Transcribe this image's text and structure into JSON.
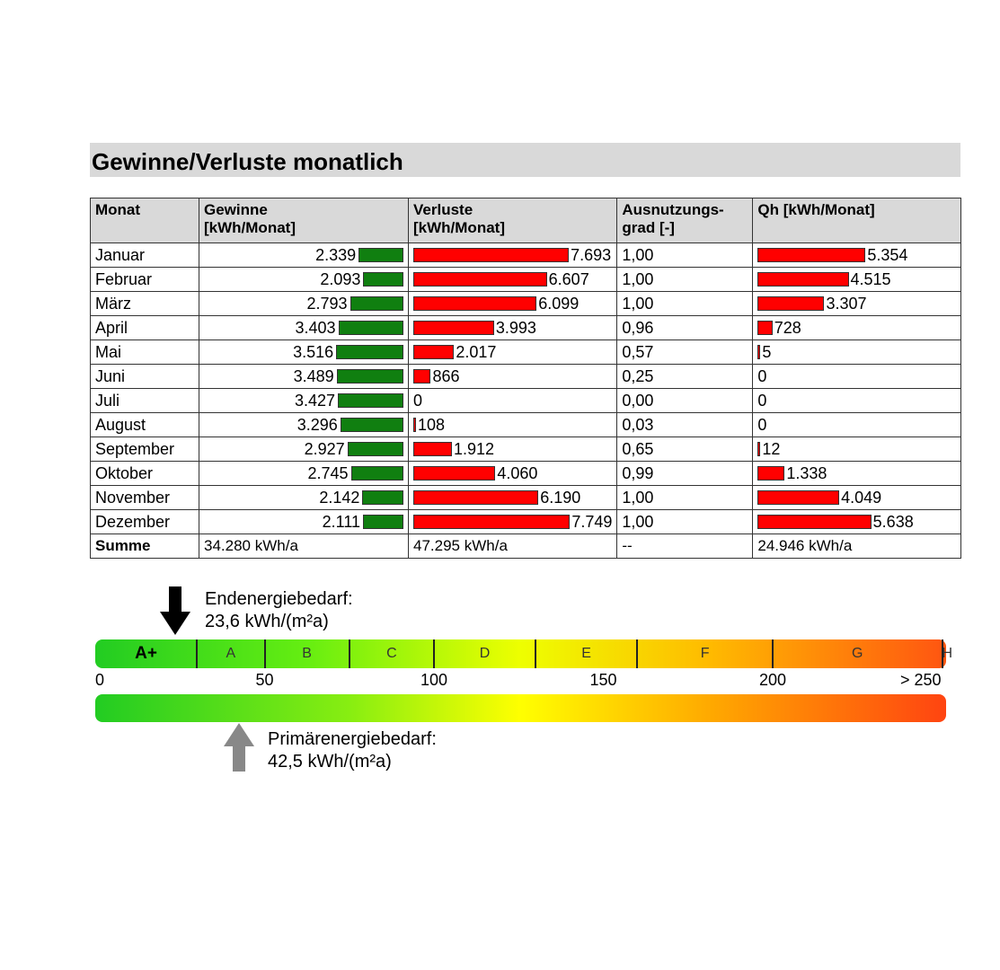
{
  "title": "Gewinne/Verluste monatlich",
  "table": {
    "headers": [
      "Monat",
      "Gewinne\n[kWh/Monat]",
      "Verluste\n[kWh/Monat]",
      "Ausnutzungs-\ngrad [-]",
      "Qh [kWh/Monat]"
    ],
    "rows": [
      {
        "monat": "Januar",
        "gewinne": "2.339",
        "verluste": "7.693",
        "grad": "1,00",
        "qh": "5.354"
      },
      {
        "monat": "Februar",
        "gewinne": "2.093",
        "verluste": "6.607",
        "grad": "1,00",
        "qh": "4.515"
      },
      {
        "monat": "März",
        "gewinne": "2.793",
        "verluste": "6.099",
        "grad": "1,00",
        "qh": "3.307"
      },
      {
        "monat": "April",
        "gewinne": "3.403",
        "verluste": "3.993",
        "grad": "0,96",
        "qh": "728"
      },
      {
        "monat": "Mai",
        "gewinne": "3.516",
        "verluste": "2.017",
        "grad": "0,57",
        "qh": "5"
      },
      {
        "monat": "Juni",
        "gewinne": "3.489",
        "verluste": "866",
        "grad": "0,25",
        "qh": "0"
      },
      {
        "monat": "Juli",
        "gewinne": "3.427",
        "verluste": "0",
        "grad": "0,00",
        "qh": "0"
      },
      {
        "monat": "August",
        "gewinne": "3.296",
        "verluste": "108",
        "grad": "0,03",
        "qh": "0"
      },
      {
        "monat": "September",
        "gewinne": "2.927",
        "verluste": "1.912",
        "grad": "0,65",
        "qh": "12"
      },
      {
        "monat": "Oktober",
        "gewinne": "2.745",
        "verluste": "4.060",
        "grad": "0,99",
        "qh": "1.338"
      },
      {
        "monat": "November",
        "gewinne": "2.142",
        "verluste": "6.190",
        "grad": "1,00",
        "qh": "4.049"
      },
      {
        "monat": "Dezember",
        "gewinne": "2.111",
        "verluste": "7.749",
        "grad": "1,00",
        "qh": "5.638"
      }
    ],
    "sum": {
      "label": "Summe",
      "gewinne": "34.280 kWh/a",
      "verluste": "47.295 kWh/a",
      "grad": "--",
      "qh": "24.946 kWh/a"
    }
  },
  "colors": {
    "gewinne": "#107f10",
    "verluste": "#ff0000"
  },
  "energy": {
    "end_label": "Endenergiebedarf:",
    "end_value": "23,6 kWh/(m²a)",
    "end_num": 23.6,
    "prim_label": "Primärenergiebedarf:",
    "prim_value": "42,5 kWh/(m²a)",
    "prim_num": 42.5,
    "classes": [
      {
        "name": "A+",
        "from": 0,
        "to": 30
      },
      {
        "name": "A",
        "from": 30,
        "to": 50
      },
      {
        "name": "B",
        "from": 50,
        "to": 75
      },
      {
        "name": "C",
        "from": 75,
        "to": 100
      },
      {
        "name": "D",
        "from": 100,
        "to": 130
      },
      {
        "name": "E",
        "from": 130,
        "to": 160
      },
      {
        "name": "F",
        "from": 160,
        "to": 200
      },
      {
        "name": "G",
        "from": 200,
        "to": 250
      },
      {
        "name": "H",
        "from": 250,
        "to": 262
      }
    ],
    "ticks": [
      {
        "label": "0",
        "v": 0
      },
      {
        "label": "50",
        "v": 50
      },
      {
        "label": "100",
        "v": 100
      },
      {
        "label": "150",
        "v": 150
      },
      {
        "label": "200",
        "v": 200
      },
      {
        "label": "> 250",
        "v": 250
      }
    ]
  }
}
